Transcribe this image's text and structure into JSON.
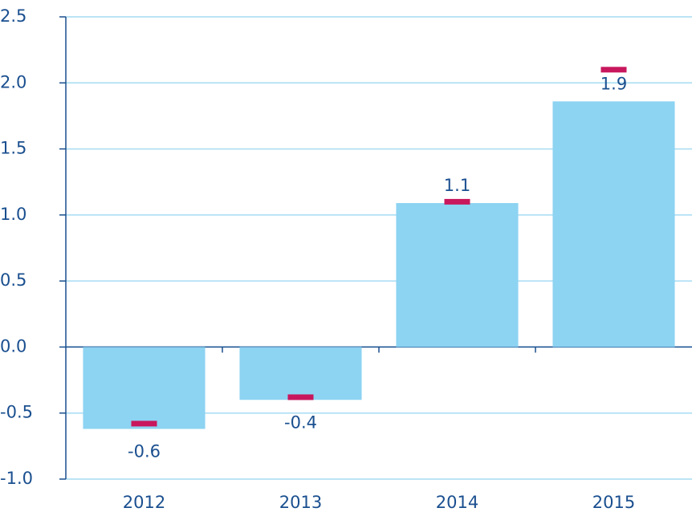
{
  "chart_data": {
    "type": "bar",
    "categories": [
      "2012",
      "2013",
      "2014",
      "2015"
    ],
    "series": [
      {
        "type": "bar",
        "color": "#8dd3f2",
        "values": [
          -0.62,
          -0.4,
          1.09,
          1.86
        ],
        "value_labels": [
          "-0.6",
          "-0.4",
          "1.1",
          "1.9"
        ]
      },
      {
        "type": "dash",
        "color": "#c8175d",
        "values": [
          -0.58,
          -0.38,
          1.1,
          2.1
        ]
      }
    ],
    "ylim": [
      -1.0,
      2.5
    ],
    "yticks": [
      {
        "value": -1.0,
        "label": "-1.0"
      },
      -0.5,
      {
        "value": 0.0,
        "label": "0.0"
      },
      0.5,
      {
        "value": 1.0,
        "label": "1.0"
      },
      1.5,
      {
        "value": 2.0,
        "label": "2.0"
      },
      2.5
    ],
    "grid": true
  }
}
